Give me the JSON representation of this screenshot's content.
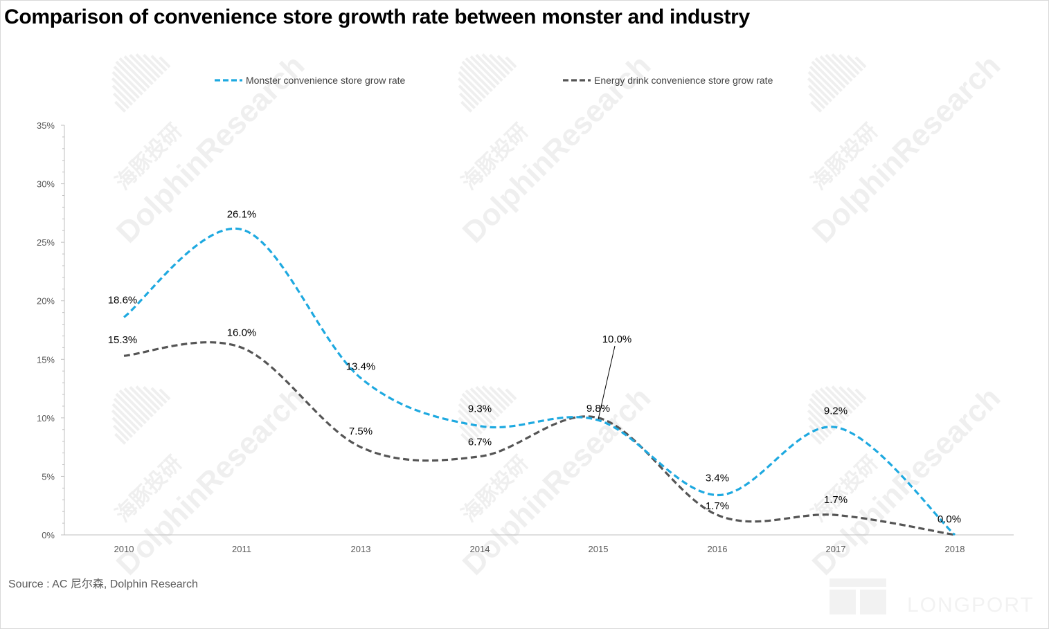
{
  "title": "Comparison of convenience store growth rate between monster and industry",
  "source": "Source : AC 尼尔森, Dolphin Research",
  "watermark": {
    "text": "DolphinResearch",
    "text_cn": "海豚投研",
    "brand": "LONGPORT"
  },
  "chart_data": {
    "type": "line",
    "smooth": true,
    "line_style": "dashed",
    "categories": [
      "2010",
      "2011",
      "2013",
      "2014",
      "2015",
      "2016",
      "2017",
      "2018"
    ],
    "ylim": [
      0,
      35
    ],
    "yticks": [
      0,
      5,
      10,
      15,
      20,
      25,
      30,
      35
    ],
    "ytick_labels": [
      "0%",
      "5%",
      "10%",
      "15%",
      "20%",
      "25%",
      "30%",
      "35%"
    ],
    "xlabel": "",
    "ylabel": "",
    "grid": false,
    "legend_position": "top",
    "series": [
      {
        "name": "Monster convenience store grow rate",
        "color": "#1ea9e0",
        "values": [
          18.6,
          26.1,
          13.4,
          9.3,
          9.8,
          3.4,
          9.2,
          0.0
        ],
        "labels": [
          "18.6%",
          "26.1%",
          "13.4%",
          "9.3%",
          "9.8%",
          "3.4%",
          "9.2%",
          "0.0%"
        ]
      },
      {
        "name": "Energy drink convenience store grow rate",
        "color": "#555555",
        "values": [
          15.3,
          16.0,
          7.5,
          6.7,
          10.0,
          1.7,
          1.7,
          0.0
        ],
        "labels": [
          "15.3%",
          "16.0%",
          "7.5%",
          "6.7%",
          "10.0%",
          "1.7%",
          "1.7%",
          ""
        ]
      }
    ]
  }
}
